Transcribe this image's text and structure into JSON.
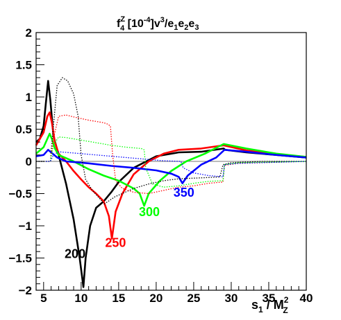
{
  "chart_data": {
    "type": "line",
    "title": {
      "base": "f",
      "sup": "Z",
      "sub": "4",
      "rest1": " [10",
      "rest1_sup": "-4",
      "rest2": "]v",
      "rest2_sup": "3",
      "rest3": "/e",
      "rest3_sub1": "1",
      "rest3_e2": "e",
      "rest3_sub2": "2",
      "rest3_e3": "e",
      "rest3_sub3": "3"
    },
    "xlabel": {
      "main": "s",
      "sub": "1",
      "mid": " / M",
      "msup": "2",
      "msub": "Z"
    },
    "ylabel": "",
    "xlim": [
      4,
      40
    ],
    "ylim": [
      -2,
      2
    ],
    "xticks": [
      5,
      10,
      15,
      20,
      25,
      30,
      35,
      40
    ],
    "yticks": [
      -2,
      -1.5,
      -1,
      -0.5,
      0,
      0.5,
      1,
      1.5,
      2
    ],
    "ytick_labels": [
      "−2",
      "−1.5",
      "−1",
      "−0.5",
      "0",
      "0.5",
      "1",
      "1.5",
      "2"
    ],
    "grid": false,
    "series": [
      {
        "name": "200",
        "color": "#000000",
        "style": "solid",
        "label_at": [
          7.8,
          -1.5
        ],
        "points": [
          [
            4,
            0.3
          ],
          [
            4.5,
            0.35
          ],
          [
            5,
            0.55
          ],
          [
            5.3,
            0.9
          ],
          [
            5.6,
            1.25
          ],
          [
            5.9,
            0.95
          ],
          [
            6.3,
            0.4
          ],
          [
            7,
            0.1
          ],
          [
            8,
            -0.35
          ],
          [
            9,
            -0.9
          ],
          [
            9.8,
            -1.5
          ],
          [
            10.3,
            -1.95
          ],
          [
            10.6,
            -1.5
          ],
          [
            11.2,
            -1.0
          ],
          [
            12,
            -0.72
          ],
          [
            13,
            -0.62
          ],
          [
            14,
            -0.48
          ],
          [
            15,
            -0.32
          ],
          [
            17,
            -0.1
          ],
          [
            20,
            0.08
          ],
          [
            23,
            0.14
          ],
          [
            26,
            0.15
          ],
          [
            29,
            0.2
          ],
          [
            29.2,
            0.18
          ],
          [
            32,
            0.14
          ],
          [
            36,
            0.1
          ],
          [
            40,
            0.06
          ]
        ]
      },
      {
        "name": "250",
        "color": "#ff0000",
        "style": "solid",
        "label_at": [
          13.2,
          -1.33
        ],
        "points": [
          [
            4,
            0.25
          ],
          [
            5,
            0.45
          ],
          [
            5.5,
            0.7
          ],
          [
            5.8,
            0.76
          ],
          [
            6.1,
            0.6
          ],
          [
            6.5,
            0.3
          ],
          [
            7,
            0.12
          ],
          [
            8,
            0.0
          ],
          [
            9,
            -0.15
          ],
          [
            10,
            -0.28
          ],
          [
            11,
            -0.4
          ],
          [
            12,
            -0.5
          ],
          [
            13,
            -0.62
          ],
          [
            13.7,
            -0.85
          ],
          [
            14.1,
            -1.2
          ],
          [
            14.6,
            -0.78
          ],
          [
            15.5,
            -0.5
          ],
          [
            17,
            -0.2
          ],
          [
            19,
            0.0
          ],
          [
            21,
            0.12
          ],
          [
            23,
            0.18
          ],
          [
            26,
            0.2
          ],
          [
            29,
            0.25
          ],
          [
            32,
            0.17
          ],
          [
            36,
            0.11
          ],
          [
            40,
            0.07
          ]
        ]
      },
      {
        "name": "300",
        "color": "#00ff00",
        "style": "solid",
        "label_at": [
          17.7,
          -0.85
        ],
        "points": [
          [
            4,
            0.12
          ],
          [
            5,
            0.22
          ],
          [
            5.5,
            0.35
          ],
          [
            5.8,
            0.43
          ],
          [
            6.1,
            0.35
          ],
          [
            6.5,
            0.2
          ],
          [
            7,
            0.1
          ],
          [
            9,
            0.0
          ],
          [
            11,
            -0.12
          ],
          [
            13,
            -0.22
          ],
          [
            15,
            -0.3
          ],
          [
            17,
            -0.42
          ],
          [
            17.8,
            -0.5
          ],
          [
            18.4,
            -0.69
          ],
          [
            19,
            -0.5
          ],
          [
            20.5,
            -0.3
          ],
          [
            22,
            -0.15
          ],
          [
            24,
            0.0
          ],
          [
            26.5,
            0.12
          ],
          [
            29,
            0.27
          ],
          [
            32,
            0.2
          ],
          [
            36,
            0.12
          ],
          [
            40,
            0.07
          ]
        ]
      },
      {
        "name": "350",
        "color": "#0000ff",
        "style": "solid",
        "label_at": [
          22.3,
          -0.55
        ],
        "points": [
          [
            4,
            0.08
          ],
          [
            5,
            0.1
          ],
          [
            5.6,
            0.18
          ],
          [
            6,
            0.14
          ],
          [
            6.8,
            0.06
          ],
          [
            8,
            0.0
          ],
          [
            11,
            -0.03
          ],
          [
            14,
            -0.07
          ],
          [
            17,
            -0.1
          ],
          [
            20,
            -0.14
          ],
          [
            22,
            -0.19
          ],
          [
            23,
            -0.24
          ],
          [
            23.5,
            -0.34
          ],
          [
            24.2,
            -0.22
          ],
          [
            26,
            -0.05
          ],
          [
            28,
            0.06
          ],
          [
            29.1,
            0.18
          ],
          [
            32,
            0.15
          ],
          [
            36,
            0.1
          ],
          [
            40,
            0.06
          ]
        ]
      },
      {
        "name": "",
        "color": "#000000",
        "style": "dotted",
        "points": [
          [
            4,
            0.0
          ],
          [
            5.5,
            0.0
          ],
          [
            5.9,
            0.0
          ],
          [
            6.3,
            0.55
          ],
          [
            6.8,
            1.18
          ],
          [
            7.5,
            1.3
          ],
          [
            8.2,
            1.25
          ],
          [
            9,
            1.05
          ],
          [
            9.6,
            0.7
          ],
          [
            10,
            0.1
          ],
          [
            10.6,
            -0.28
          ],
          [
            11.5,
            -0.45
          ],
          [
            12.5,
            -0.58
          ],
          [
            13.1,
            -0.66
          ],
          [
            14.5,
            -0.55
          ],
          [
            17,
            -0.42
          ],
          [
            19,
            -0.35
          ],
          [
            21,
            -0.3
          ],
          [
            23,
            -0.27
          ],
          [
            25,
            -0.26
          ],
          [
            27,
            -0.25
          ],
          [
            28.5,
            -0.24
          ],
          [
            28.9,
            -0.05
          ],
          [
            30,
            -0.02
          ],
          [
            34,
            0.0
          ],
          [
            40,
            0.0
          ]
        ]
      },
      {
        "name": "",
        "color": "#ff0000",
        "style": "dotted",
        "points": [
          [
            4,
            0.0
          ],
          [
            5.9,
            0.0
          ],
          [
            6.3,
            0.35
          ],
          [
            7,
            0.7
          ],
          [
            8,
            0.72
          ],
          [
            9,
            0.69
          ],
          [
            11,
            0.64
          ],
          [
            13,
            0.6
          ],
          [
            13.5,
            0.58
          ],
          [
            13.9,
            0.55
          ],
          [
            14.2,
            0.1
          ],
          [
            14.6,
            -0.3
          ],
          [
            15.5,
            -0.42
          ],
          [
            17,
            -0.48
          ],
          [
            19,
            -0.5
          ],
          [
            21,
            -0.45
          ],
          [
            23,
            -0.4
          ],
          [
            25,
            -0.38
          ],
          [
            27,
            -0.34
          ],
          [
            28.9,
            -0.32
          ],
          [
            29.1,
            -0.06
          ],
          [
            31,
            -0.03
          ],
          [
            40,
            0.0
          ]
        ]
      },
      {
        "name": "",
        "color": "#00ff00",
        "style": "dotted",
        "points": [
          [
            4,
            0.0
          ],
          [
            5.9,
            0.0
          ],
          [
            6.3,
            0.25
          ],
          [
            7,
            0.38
          ],
          [
            8,
            0.37
          ],
          [
            10,
            0.33
          ],
          [
            12,
            0.29
          ],
          [
            14,
            0.25
          ],
          [
            16,
            0.22
          ],
          [
            18,
            0.2
          ],
          [
            18.4,
            0.18
          ],
          [
            18.6,
            -0.1
          ],
          [
            19.5,
            -0.35
          ],
          [
            21,
            -0.4
          ],
          [
            23,
            -0.38
          ],
          [
            25,
            -0.34
          ],
          [
            27,
            -0.31
          ],
          [
            28.9,
            -0.3
          ],
          [
            29.1,
            -0.05
          ],
          [
            31,
            -0.02
          ],
          [
            40,
            0.0
          ]
        ]
      },
      {
        "name": "",
        "color": "#0000ff",
        "style": "dotted",
        "points": [
          [
            4,
            0.0
          ],
          [
            5.9,
            0.0
          ],
          [
            6.3,
            0.1
          ],
          [
            7,
            0.15
          ],
          [
            9,
            0.13
          ],
          [
            12,
            0.1
          ],
          [
            15,
            0.07
          ],
          [
            18,
            0.04
          ],
          [
            21,
            0.01
          ],
          [
            23.3,
            0.0
          ],
          [
            23.6,
            -0.1
          ],
          [
            25,
            -0.18
          ],
          [
            27,
            -0.22
          ],
          [
            28.9,
            -0.24
          ],
          [
            29.1,
            -0.05
          ],
          [
            31,
            -0.03
          ],
          [
            40,
            0.0
          ]
        ]
      }
    ]
  }
}
